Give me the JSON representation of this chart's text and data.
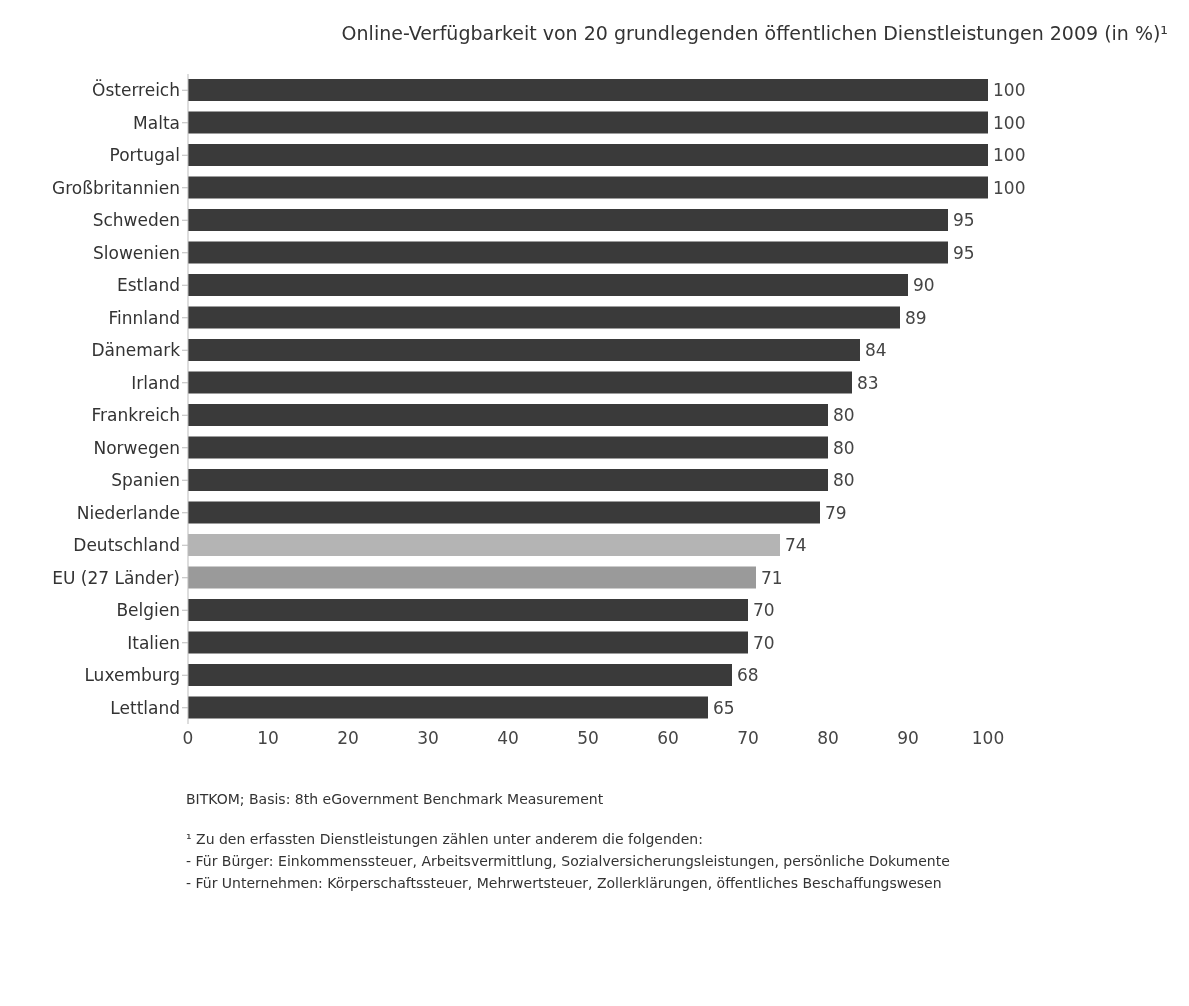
{
  "chart_data": {
    "type": "bar",
    "orientation": "horizontal",
    "title": "Online-Verfügbarkeit von 20 grundlegenden öffentlichen Dienstleistungen 2009 (in %)¹",
    "categories": [
      "Österreich",
      "Malta",
      "Portugal",
      "Großbritannien",
      "Schweden",
      "Slowenien",
      "Estland",
      "Finnland",
      "Dänemark",
      "Irland",
      "Frankreich",
      "Norwegen",
      "Spanien",
      "Niederlande",
      "Deutschland",
      "EU (27 Länder)",
      "Belgien",
      "Italien",
      "Luxemburg",
      "Lettland"
    ],
    "values": [
      100,
      100,
      100,
      100,
      95,
      95,
      90,
      89,
      84,
      83,
      80,
      80,
      80,
      79,
      74,
      71,
      70,
      70,
      68,
      65
    ],
    "colors": [
      "#3a3a3a",
      "#3a3a3a",
      "#3a3a3a",
      "#3a3a3a",
      "#3a3a3a",
      "#3a3a3a",
      "#3a3a3a",
      "#3a3a3a",
      "#3a3a3a",
      "#3a3a3a",
      "#3a3a3a",
      "#3a3a3a",
      "#3a3a3a",
      "#3a3a3a",
      "#b4b4b4",
      "#9a9a9a",
      "#3a3a3a",
      "#3a3a3a",
      "#3a3a3a",
      "#3a3a3a"
    ],
    "xlim": [
      0,
      100
    ],
    "xticks": [
      0,
      10,
      20,
      30,
      40,
      50,
      60,
      70,
      80,
      90,
      100
    ],
    "data_labels": true,
    "grid": false,
    "legend": false,
    "annotations": [
      "BITKOM; Basis: 8th eGovernment Benchmark Measurement",
      "¹ Zu den erfassten Dienstleistungen zählen unter anderem die folgenden:",
      "- Für Bürger: Einkommenssteuer, Arbeitsvermittlung, Sozialversicherungsleistungen, persönliche Dokumente",
      "- Für Unternehmen: Körperschaftssteuer, Mehrwertsteuer, Zollerklärungen, öffentliches Beschaffungswesen"
    ]
  }
}
